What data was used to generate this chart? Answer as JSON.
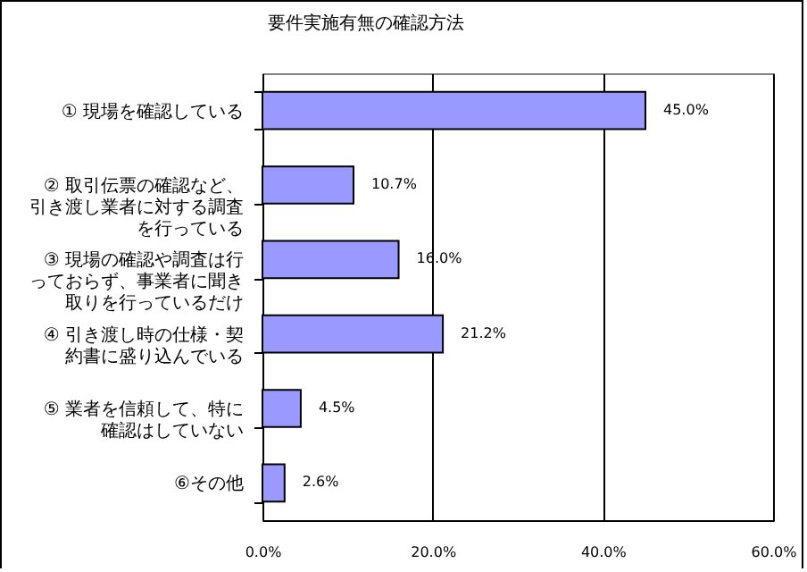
{
  "chart_data": {
    "type": "bar",
    "orientation": "horizontal",
    "title": "要件実施有無の確認方法",
    "categories": [
      "① 現場を確認している",
      "② 取引伝票の確認など、引き渡し業者に対する調査を行っている",
      "③ 現場の確認や調査は行っておらず、事業者に聞き取りを行っているだけ",
      "④ 引き渡し時の仕様・契約書に盛り込んでいる",
      "⑤ 業者を信頼して、特に確認はしていない",
      "⑥その他"
    ],
    "values": [
      45.0,
      10.7,
      16.0,
      21.2,
      4.5,
      2.6
    ],
    "value_labels": [
      "45.0%",
      "10.7%",
      "16.0%",
      "21.2%",
      "4.5%",
      "2.6%"
    ],
    "color": "#9999ff",
    "xlim": [
      0,
      60
    ],
    "xticks": [
      {
        "value": 0,
        "label": "0.0%"
      },
      {
        "value": 20,
        "label": "20.0%"
      },
      {
        "value": 40,
        "label": "40.0%"
      },
      {
        "value": 60,
        "label": "60.0%"
      }
    ],
    "grid": "x"
  }
}
